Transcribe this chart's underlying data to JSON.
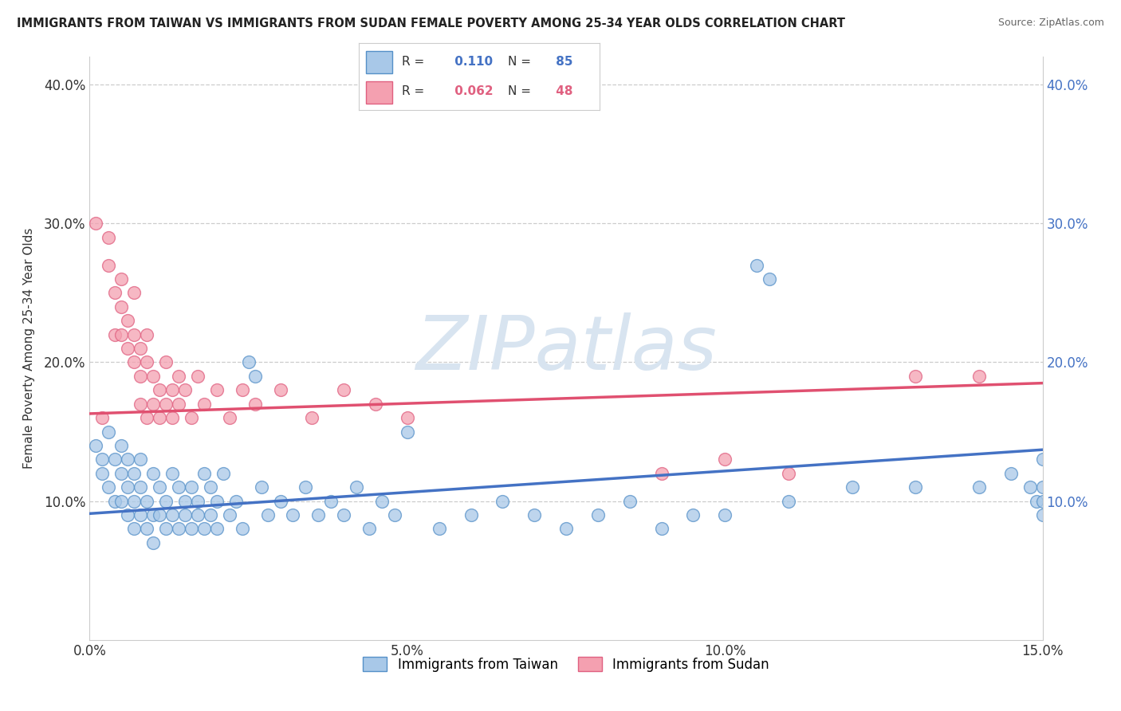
{
  "title": "IMMIGRANTS FROM TAIWAN VS IMMIGRANTS FROM SUDAN FEMALE POVERTY AMONG 25-34 YEAR OLDS CORRELATION CHART",
  "source": "Source: ZipAtlas.com",
  "ylabel": "Female Poverty Among 25-34 Year Olds",
  "xlim": [
    0.0,
    0.15
  ],
  "ylim": [
    0.0,
    0.42
  ],
  "xticks": [
    0.0,
    0.05,
    0.1,
    0.15
  ],
  "xtick_labels": [
    "0.0%",
    "5.0%",
    "10.0%",
    "15.0%"
  ],
  "yticks": [
    0.0,
    0.1,
    0.2,
    0.3,
    0.4
  ],
  "ytick_labels": [
    "",
    "10.0%",
    "20.0%",
    "30.0%",
    "40.0%"
  ],
  "taiwan_R": 0.11,
  "taiwan_N": 85,
  "sudan_R": 0.062,
  "sudan_N": 48,
  "taiwan_color": "#a8c8e8",
  "sudan_color": "#f4a0b0",
  "taiwan_edge_color": "#5590c8",
  "sudan_edge_color": "#e06080",
  "taiwan_line_color": "#4472c4",
  "sudan_line_color": "#e05070",
  "watermark_color": "#d8e4f0",
  "watermark": "ZIPatlas",
  "taiwan_scatter": [
    [
      0.001,
      0.14
    ],
    [
      0.002,
      0.13
    ],
    [
      0.002,
      0.12
    ],
    [
      0.003,
      0.15
    ],
    [
      0.003,
      0.11
    ],
    [
      0.004,
      0.13
    ],
    [
      0.004,
      0.1
    ],
    [
      0.005,
      0.14
    ],
    [
      0.005,
      0.12
    ],
    [
      0.005,
      0.1
    ],
    [
      0.006,
      0.13
    ],
    [
      0.006,
      0.11
    ],
    [
      0.006,
      0.09
    ],
    [
      0.007,
      0.12
    ],
    [
      0.007,
      0.1
    ],
    [
      0.007,
      0.08
    ],
    [
      0.008,
      0.13
    ],
    [
      0.008,
      0.11
    ],
    [
      0.008,
      0.09
    ],
    [
      0.009,
      0.1
    ],
    [
      0.009,
      0.08
    ],
    [
      0.01,
      0.12
    ],
    [
      0.01,
      0.09
    ],
    [
      0.01,
      0.07
    ],
    [
      0.011,
      0.11
    ],
    [
      0.011,
      0.09
    ],
    [
      0.012,
      0.1
    ],
    [
      0.012,
      0.08
    ],
    [
      0.013,
      0.12
    ],
    [
      0.013,
      0.09
    ],
    [
      0.014,
      0.11
    ],
    [
      0.014,
      0.08
    ],
    [
      0.015,
      0.1
    ],
    [
      0.015,
      0.09
    ],
    [
      0.016,
      0.11
    ],
    [
      0.016,
      0.08
    ],
    [
      0.017,
      0.1
    ],
    [
      0.017,
      0.09
    ],
    [
      0.018,
      0.12
    ],
    [
      0.018,
      0.08
    ],
    [
      0.019,
      0.11
    ],
    [
      0.019,
      0.09
    ],
    [
      0.02,
      0.1
    ],
    [
      0.02,
      0.08
    ],
    [
      0.021,
      0.12
    ],
    [
      0.022,
      0.09
    ],
    [
      0.023,
      0.1
    ],
    [
      0.024,
      0.08
    ],
    [
      0.025,
      0.2
    ],
    [
      0.026,
      0.19
    ],
    [
      0.027,
      0.11
    ],
    [
      0.028,
      0.09
    ],
    [
      0.03,
      0.1
    ],
    [
      0.032,
      0.09
    ],
    [
      0.034,
      0.11
    ],
    [
      0.036,
      0.09
    ],
    [
      0.038,
      0.1
    ],
    [
      0.04,
      0.09
    ],
    [
      0.042,
      0.11
    ],
    [
      0.044,
      0.08
    ],
    [
      0.046,
      0.1
    ],
    [
      0.048,
      0.09
    ],
    [
      0.05,
      0.15
    ],
    [
      0.055,
      0.08
    ],
    [
      0.06,
      0.09
    ],
    [
      0.065,
      0.1
    ],
    [
      0.07,
      0.09
    ],
    [
      0.075,
      0.08
    ],
    [
      0.08,
      0.09
    ],
    [
      0.085,
      0.1
    ],
    [
      0.09,
      0.08
    ],
    [
      0.095,
      0.09
    ],
    [
      0.1,
      0.09
    ],
    [
      0.105,
      0.27
    ],
    [
      0.107,
      0.26
    ],
    [
      0.11,
      0.1
    ],
    [
      0.12,
      0.11
    ],
    [
      0.13,
      0.11
    ],
    [
      0.14,
      0.11
    ],
    [
      0.145,
      0.12
    ],
    [
      0.148,
      0.11
    ],
    [
      0.149,
      0.1
    ],
    [
      0.15,
      0.13
    ],
    [
      0.15,
      0.11
    ],
    [
      0.15,
      0.1
    ],
    [
      0.15,
      0.09
    ]
  ],
  "sudan_scatter": [
    [
      0.001,
      0.3
    ],
    [
      0.002,
      0.16
    ],
    [
      0.003,
      0.29
    ],
    [
      0.003,
      0.27
    ],
    [
      0.004,
      0.25
    ],
    [
      0.004,
      0.22
    ],
    [
      0.005,
      0.26
    ],
    [
      0.005,
      0.24
    ],
    [
      0.005,
      0.22
    ],
    [
      0.006,
      0.23
    ],
    [
      0.006,
      0.21
    ],
    [
      0.007,
      0.25
    ],
    [
      0.007,
      0.22
    ],
    [
      0.007,
      0.2
    ],
    [
      0.008,
      0.21
    ],
    [
      0.008,
      0.19
    ],
    [
      0.008,
      0.17
    ],
    [
      0.009,
      0.22
    ],
    [
      0.009,
      0.2
    ],
    [
      0.009,
      0.16
    ],
    [
      0.01,
      0.19
    ],
    [
      0.01,
      0.17
    ],
    [
      0.011,
      0.18
    ],
    [
      0.011,
      0.16
    ],
    [
      0.012,
      0.2
    ],
    [
      0.012,
      0.17
    ],
    [
      0.013,
      0.18
    ],
    [
      0.013,
      0.16
    ],
    [
      0.014,
      0.19
    ],
    [
      0.014,
      0.17
    ],
    [
      0.015,
      0.18
    ],
    [
      0.016,
      0.16
    ],
    [
      0.017,
      0.19
    ],
    [
      0.018,
      0.17
    ],
    [
      0.02,
      0.18
    ],
    [
      0.022,
      0.16
    ],
    [
      0.024,
      0.18
    ],
    [
      0.026,
      0.17
    ],
    [
      0.03,
      0.18
    ],
    [
      0.035,
      0.16
    ],
    [
      0.04,
      0.18
    ],
    [
      0.045,
      0.17
    ],
    [
      0.05,
      0.16
    ],
    [
      0.09,
      0.12
    ],
    [
      0.1,
      0.13
    ],
    [
      0.11,
      0.12
    ],
    [
      0.13,
      0.19
    ],
    [
      0.14,
      0.19
    ]
  ],
  "taiwan_trendline": [
    [
      0.0,
      0.091
    ],
    [
      0.15,
      0.137
    ]
  ],
  "sudan_trendline": [
    [
      0.0,
      0.163
    ],
    [
      0.15,
      0.185
    ]
  ]
}
